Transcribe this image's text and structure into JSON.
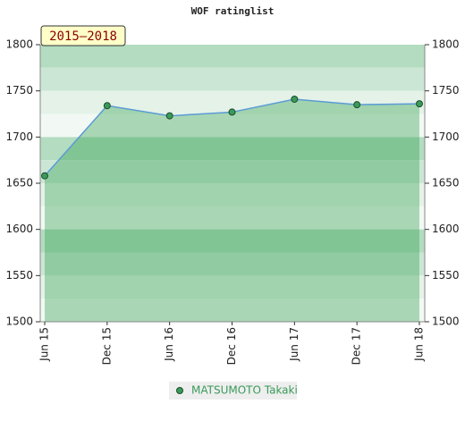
{
  "chart_data": {
    "type": "line",
    "title": "WOF ratinglist",
    "annotation": "2015–2018",
    "categories": [
      "Jun 15",
      "Dec 15",
      "Jun 16",
      "Dec 16",
      "Jun 17",
      "Dec 17",
      "Jun 18"
    ],
    "series": [
      {
        "name": "MATSUMOTO Takaki",
        "color": "#5b9bd5",
        "marker_color": "#3a9a5a",
        "values": [
          1658,
          1734,
          1723,
          1727,
          1741,
          1735,
          1736
        ]
      }
    ],
    "ylim": [
      1500,
      1800
    ],
    "yticks": [
      1500,
      1550,
      1600,
      1650,
      1700,
      1750,
      1800
    ],
    "y2lim": [
      1500,
      1800
    ],
    "y2ticks": [
      1500,
      1550,
      1600,
      1650,
      1700,
      1750,
      1800
    ]
  }
}
